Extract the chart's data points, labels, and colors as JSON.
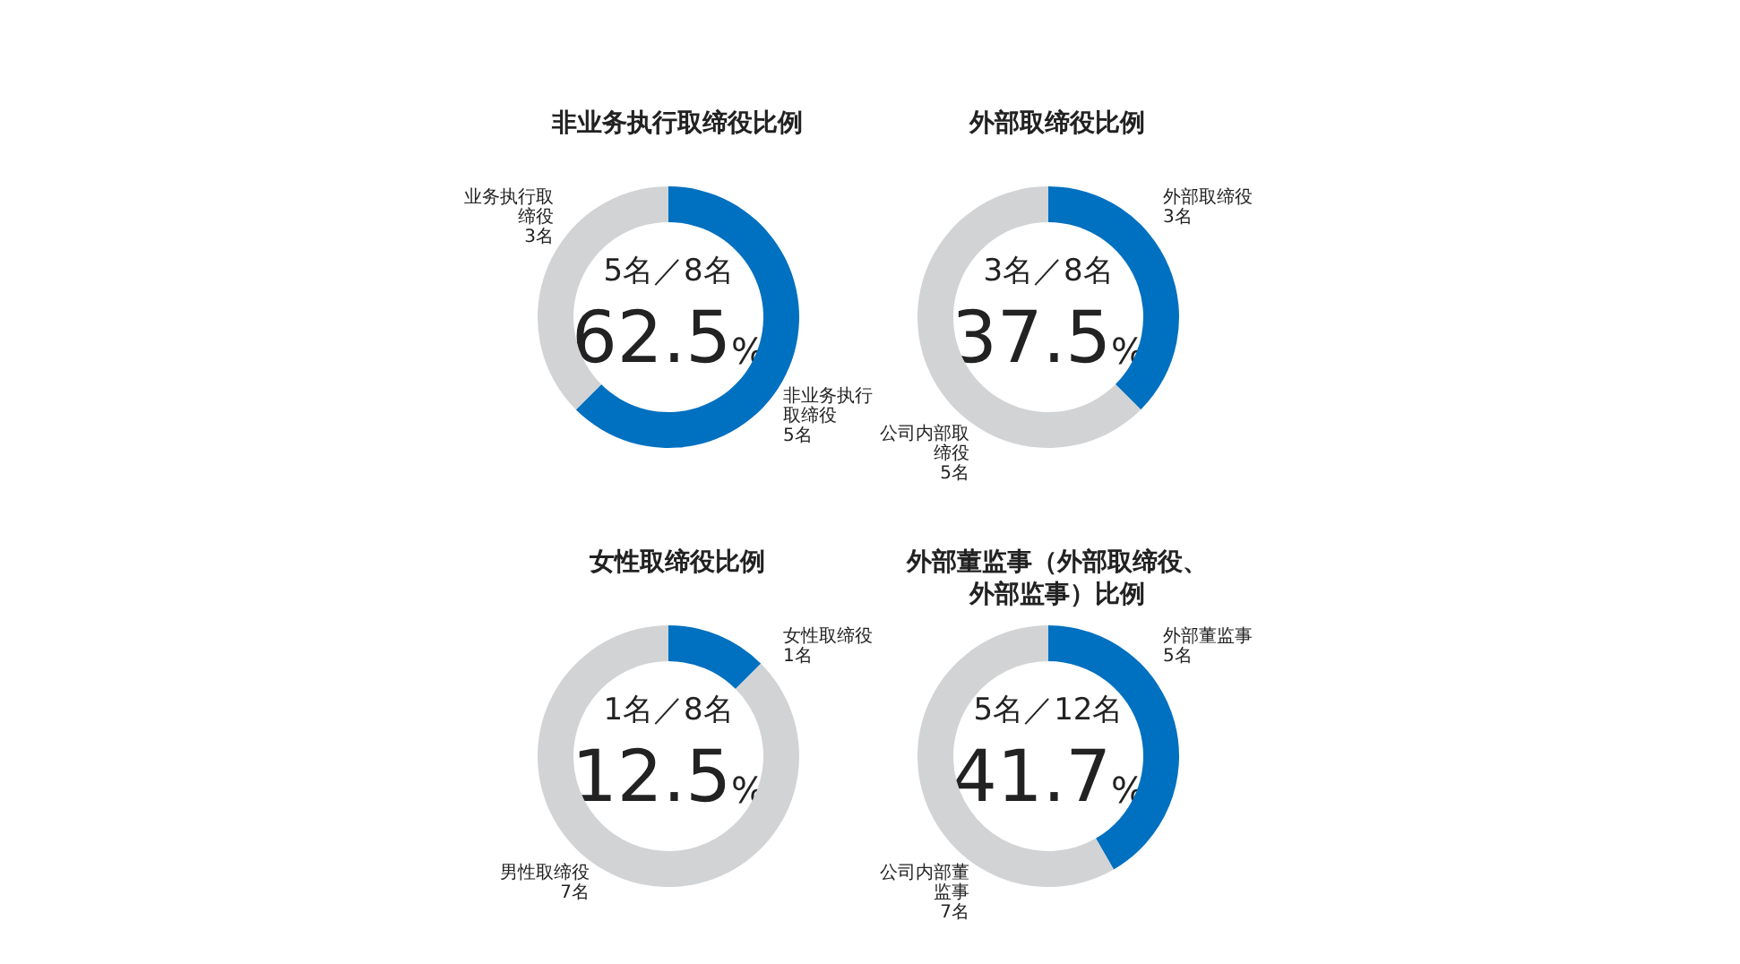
{
  "chart_data": [
    {
      "type": "donut",
      "title": "非业务执行取缔役比例",
      "categories": [
        "非业务执行取缔役",
        "业务执行取缔役"
      ],
      "values": [
        5,
        3
      ],
      "value_labels": [
        "5名",
        "3名"
      ],
      "colors": [
        "#0070c0",
        "#d2d3d5"
      ],
      "annotations": [
        "5名／8名",
        "62.5%"
      ],
      "legend": false
    },
    {
      "type": "donut",
      "title": "外部取缔役比例",
      "categories": [
        "外部取缔役",
        "公司内部取缔役"
      ],
      "values": [
        3,
        5
      ],
      "value_labels": [
        "3名",
        "5名"
      ],
      "colors": [
        "#0070c0",
        "#d2d3d5"
      ],
      "annotations": [
        "3名／8名",
        "37.5%"
      ],
      "legend": false
    },
    {
      "type": "donut",
      "title": "女性取缔役比例",
      "categories": [
        "女性取缔役",
        "男性取缔役"
      ],
      "values": [
        1,
        7
      ],
      "value_labels": [
        "1名",
        "7名"
      ],
      "colors": [
        "#0070c0",
        "#d2d3d5"
      ],
      "annotations": [
        "1名／8名",
        "12.5%"
      ],
      "legend": false
    },
    {
      "type": "donut",
      "title": "外部董监事（外部取缔役、外部监事）比例",
      "categories": [
        "外部董监事",
        "公司内部董监事"
      ],
      "values": [
        5,
        7
      ],
      "value_labels": [
        "5名",
        "7名"
      ],
      "colors": [
        "#0070c0",
        "#d2d3d5"
      ],
      "annotations": [
        "5名／12名",
        "41.7%"
      ],
      "legend": false
    }
  ]
}
